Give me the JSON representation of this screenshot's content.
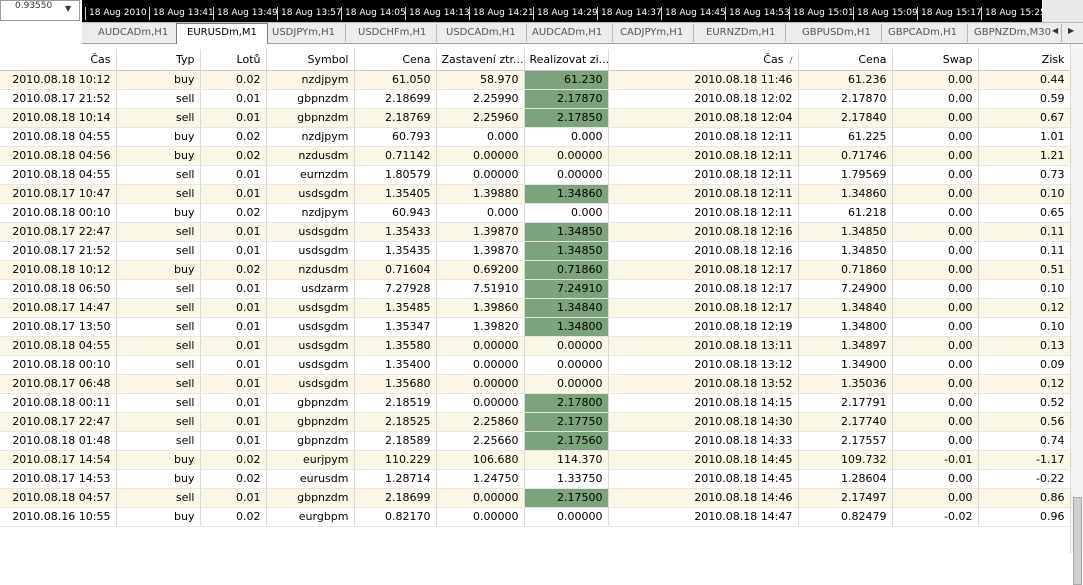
{
  "price_box": {
    "value": "0.93550",
    "dropdown": "▼"
  },
  "timeline": [
    "18 Aug 2010",
    "18 Aug 13:41",
    "18 Aug 13:49",
    "18 Aug 13:57",
    "18 Aug 14:05",
    "18 Aug 14:13",
    "18 Aug 14:21",
    "18 Aug 14:29",
    "18 Aug 14:37",
    "18 Aug 14:45",
    "18 Aug 14:53",
    "18 Aug 15:01",
    "18 Aug 15:09",
    "18 Aug 15:17",
    "18 Aug 15:25"
  ],
  "tabs": [
    "AUDCADm,H1",
    "EURUSDm,M1",
    "USDJPYm,H1",
    "USDCHFm,H1",
    "USDCADm,H1",
    "AUDCADm,H1",
    "CADJPYm,H1",
    "EURNZDm,H1",
    "GBPUSDm,H1",
    "GBPCADm,H1",
    "GBPNZDm,M30"
  ],
  "active_tab": "EURUSDm,M1",
  "tab_arrows": [
    "◀",
    "▶"
  ],
  "columns": [
    "Čas",
    "Typ",
    "Lotů",
    "Symbol",
    "Cena",
    "Zastavení ztr...",
    "Realizovat zi...",
    "Čas",
    "Cena",
    "Swap",
    "Zisk"
  ],
  "sort_indicator": "/",
  "colors": {
    "highlight": "#7da37c",
    "row_alt": "#fbf7e6"
  },
  "rows": [
    {
      "open": "2010.08.18 10:12",
      "type": "buy",
      "lots": "0.02",
      "symbol": "nzdjpym",
      "price": "61.050",
      "sl": "58.970",
      "tp": "61.230",
      "tp_hl": true,
      "close_time": "2010.08.18 11:46",
      "close_price": "61.236",
      "swap": "0.00",
      "profit": "0.44"
    },
    {
      "open": "2010.08.17 21:52",
      "type": "sell",
      "lots": "0.01",
      "symbol": "gbpnzdm",
      "price": "2.18699",
      "sl": "2.25990",
      "tp": "2.17870",
      "tp_hl": true,
      "close_time": "2010.08.18 12:02",
      "close_price": "2.17870",
      "swap": "0.00",
      "profit": "0.59"
    },
    {
      "open": "2010.08.18 10:14",
      "type": "sell",
      "lots": "0.01",
      "symbol": "gbpnzdm",
      "price": "2.18769",
      "sl": "2.25960",
      "tp": "2.17850",
      "tp_hl": true,
      "close_time": "2010.08.18 12:04",
      "close_price": "2.17840",
      "swap": "0.00",
      "profit": "0.67"
    },
    {
      "open": "2010.08.18 04:55",
      "type": "buy",
      "lots": "0.02",
      "symbol": "nzdjpym",
      "price": "60.793",
      "sl": "0.000",
      "tp": "0.000",
      "tp_hl": false,
      "close_time": "2010.08.18 12:11",
      "close_price": "61.225",
      "swap": "0.00",
      "profit": "1.01"
    },
    {
      "open": "2010.08.18 04:56",
      "type": "buy",
      "lots": "0.02",
      "symbol": "nzdusdm",
      "price": "0.71142",
      "sl": "0.00000",
      "tp": "0.00000",
      "tp_hl": false,
      "close_time": "2010.08.18 12:11",
      "close_price": "0.71746",
      "swap": "0.00",
      "profit": "1.21"
    },
    {
      "open": "2010.08.18 04:55",
      "type": "sell",
      "lots": "0.01",
      "symbol": "eurnzdm",
      "price": "1.80579",
      "sl": "0.00000",
      "tp": "0.00000",
      "tp_hl": false,
      "close_time": "2010.08.18 12:11",
      "close_price": "1.79569",
      "swap": "0.00",
      "profit": "0.73"
    },
    {
      "open": "2010.08.17 10:47",
      "type": "sell",
      "lots": "0.01",
      "symbol": "usdsgdm",
      "price": "1.35405",
      "sl": "1.39880",
      "tp": "1.34860",
      "tp_hl": true,
      "close_time": "2010.08.18 12:11",
      "close_price": "1.34860",
      "swap": "0.00",
      "profit": "0.10"
    },
    {
      "open": "2010.08.18 00:10",
      "type": "buy",
      "lots": "0.02",
      "symbol": "nzdjpym",
      "price": "60.943",
      "sl": "0.000",
      "tp": "0.000",
      "tp_hl": false,
      "close_time": "2010.08.18 12:11",
      "close_price": "61.218",
      "swap": "0.00",
      "profit": "0.65"
    },
    {
      "open": "2010.08.17 22:47",
      "type": "sell",
      "lots": "0.01",
      "symbol": "usdsgdm",
      "price": "1.35433",
      "sl": "1.39870",
      "tp": "1.34850",
      "tp_hl": true,
      "close_time": "2010.08.18 12:16",
      "close_price": "1.34850",
      "swap": "0.00",
      "profit": "0.11"
    },
    {
      "open": "2010.08.17 21:52",
      "type": "sell",
      "lots": "0.01",
      "symbol": "usdsgdm",
      "price": "1.35435",
      "sl": "1.39870",
      "tp": "1.34850",
      "tp_hl": true,
      "close_time": "2010.08.18 12:16",
      "close_price": "1.34850",
      "swap": "0.00",
      "profit": "0.11"
    },
    {
      "open": "2010.08.18 10:12",
      "type": "buy",
      "lots": "0.02",
      "symbol": "nzdusdm",
      "price": "0.71604",
      "sl": "0.69200",
      "tp": "0.71860",
      "tp_hl": true,
      "close_time": "2010.08.18 12:17",
      "close_price": "0.71860",
      "swap": "0.00",
      "profit": "0.51"
    },
    {
      "open": "2010.08.18 06:50",
      "type": "sell",
      "lots": "0.01",
      "symbol": "usdzarm",
      "price": "7.27928",
      "sl": "7.51910",
      "tp": "7.24910",
      "tp_hl": true,
      "close_time": "2010.08.18 12:17",
      "close_price": "7.24900",
      "swap": "0.00",
      "profit": "0.10"
    },
    {
      "open": "2010.08.17 14:47",
      "type": "sell",
      "lots": "0.01",
      "symbol": "usdsgdm",
      "price": "1.35485",
      "sl": "1.39860",
      "tp": "1.34840",
      "tp_hl": true,
      "close_time": "2010.08.18 12:17",
      "close_price": "1.34840",
      "swap": "0.00",
      "profit": "0.12"
    },
    {
      "open": "2010.08.17 13:50",
      "type": "sell",
      "lots": "0.01",
      "symbol": "usdsgdm",
      "price": "1.35347",
      "sl": "1.39820",
      "tp": "1.34800",
      "tp_hl": true,
      "close_time": "2010.08.18 12:19",
      "close_price": "1.34800",
      "swap": "0.00",
      "profit": "0.10"
    },
    {
      "open": "2010.08.18 04:55",
      "type": "sell",
      "lots": "0.01",
      "symbol": "usdsgdm",
      "price": "1.35580",
      "sl": "0.00000",
      "tp": "0.00000",
      "tp_hl": false,
      "close_time": "2010.08.18 13:11",
      "close_price": "1.34897",
      "swap": "0.00",
      "profit": "0.13"
    },
    {
      "open": "2010.08.18 00:10",
      "type": "sell",
      "lots": "0.01",
      "symbol": "usdsgdm",
      "price": "1.35400",
      "sl": "0.00000",
      "tp": "0.00000",
      "tp_hl": false,
      "close_time": "2010.08.18 13:12",
      "close_price": "1.34900",
      "swap": "0.00",
      "profit": "0.09"
    },
    {
      "open": "2010.08.17 06:48",
      "type": "sell",
      "lots": "0.01",
      "symbol": "usdsgdm",
      "price": "1.35680",
      "sl": "0.00000",
      "tp": "0.00000",
      "tp_hl": false,
      "close_time": "2010.08.18 13:52",
      "close_price": "1.35036",
      "swap": "0.00",
      "profit": "0.12"
    },
    {
      "open": "2010.08.18 00:11",
      "type": "sell",
      "lots": "0.01",
      "symbol": "gbpnzdm",
      "price": "2.18519",
      "sl": "0.00000",
      "tp": "2.17800",
      "tp_hl": true,
      "close_time": "2010.08.18 14:15",
      "close_price": "2.17791",
      "swap": "0.00",
      "profit": "0.52"
    },
    {
      "open": "2010.08.17 22:47",
      "type": "sell",
      "lots": "0.01",
      "symbol": "gbpnzdm",
      "price": "2.18525",
      "sl": "2.25860",
      "tp": "2.17750",
      "tp_hl": true,
      "close_time": "2010.08.18 14:30",
      "close_price": "2.17740",
      "swap": "0.00",
      "profit": "0.56"
    },
    {
      "open": "2010.08.18 01:48",
      "type": "sell",
      "lots": "0.01",
      "symbol": "gbpnzdm",
      "price": "2.18589",
      "sl": "2.25660",
      "tp": "2.17560",
      "tp_hl": true,
      "close_time": "2010.08.18 14:33",
      "close_price": "2.17557",
      "swap": "0.00",
      "profit": "0.74"
    },
    {
      "open": "2010.08.17 14:54",
      "type": "buy",
      "lots": "0.02",
      "symbol": "eurjpym",
      "price": "110.229",
      "sl": "106.680",
      "tp": "114.370",
      "tp_hl": false,
      "close_time": "2010.08.18 14:45",
      "close_price": "109.732",
      "swap": "-0.01",
      "profit": "-1.17"
    },
    {
      "open": "2010.08.17 14:53",
      "type": "buy",
      "lots": "0.02",
      "symbol": "eurusdm",
      "price": "1.28714",
      "sl": "1.24750",
      "tp": "1.33750",
      "tp_hl": false,
      "close_time": "2010.08.18 14:45",
      "close_price": "1.28604",
      "swap": "0.00",
      "profit": "-0.22"
    },
    {
      "open": "2010.08.18 04:57",
      "type": "sell",
      "lots": "0.01",
      "symbol": "gbpnzdm",
      "price": "2.18699",
      "sl": "0.00000",
      "tp": "2.17500",
      "tp_hl": true,
      "close_time": "2010.08.18 14:46",
      "close_price": "2.17497",
      "swap": "0.00",
      "profit": "0.86"
    },
    {
      "open": "2010.08.16 10:55",
      "type": "buy",
      "lots": "0.02",
      "symbol": "eurgbpm",
      "price": "0.82170",
      "sl": "0.00000",
      "tp": "0.00000",
      "tp_hl": false,
      "close_time": "2010.08.18 14:47",
      "close_price": "0.82479",
      "swap": "-0.02",
      "profit": "0.96"
    }
  ]
}
